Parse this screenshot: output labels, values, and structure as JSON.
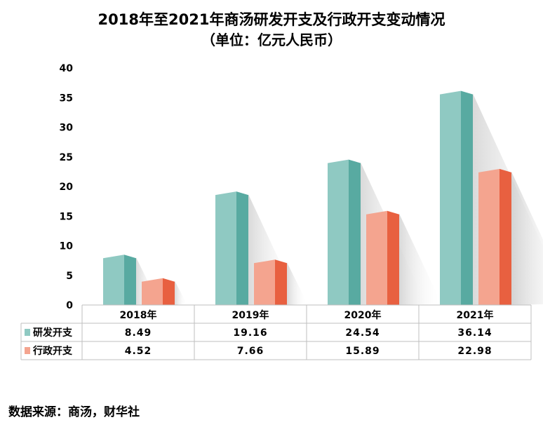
{
  "chart_data": {
    "type": "bar",
    "title": "2018年至2021年商汤研发开支及行政开支变动情况",
    "subtitle": "（单位：亿元人民币）",
    "categories": [
      "2018年",
      "2019年",
      "2020年",
      "2021年"
    ],
    "series": [
      {
        "name": "研发开支",
        "values": [
          8.49,
          19.16,
          24.54,
          36.14
        ],
        "front_color": "#8fc9c2",
        "side_color": "#58aaa1"
      },
      {
        "name": "行政开支",
        "values": [
          4.52,
          7.66,
          15.89,
          22.98
        ],
        "front_color": "#f4a48f",
        "side_color": "#e86040"
      }
    ],
    "ylim": [
      0,
      40
    ],
    "yticks": [
      "0",
      "5",
      "10",
      "15",
      "20",
      "25",
      "30",
      "35",
      "40"
    ],
    "data_table": {
      "rows": [
        {
          "label": "研发开支",
          "values": [
            "8.49",
            "19.16",
            "24.54",
            "36.14"
          ]
        },
        {
          "label": "行政开支",
          "values": [
            "4.52",
            "7.66",
            "15.89",
            "22.98"
          ]
        }
      ]
    },
    "grid": false,
    "legend": "data-table"
  },
  "source": "数据来源：商汤，财华社"
}
